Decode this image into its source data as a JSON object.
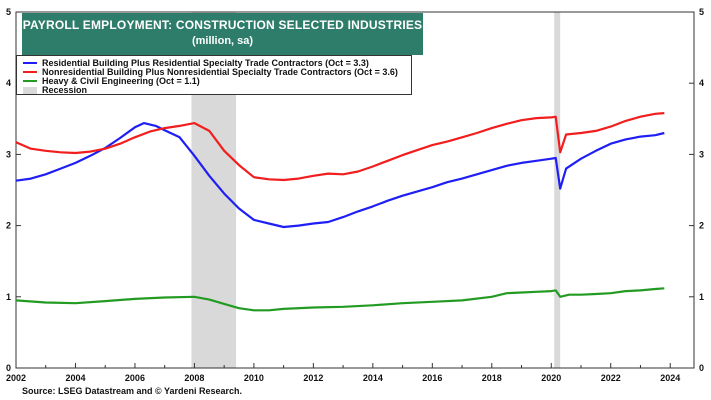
{
  "title": {
    "line1": "PAYROLL EMPLOYMENT:  CONSTRUCTION SELECTED INDUSTRIES",
    "line2": "(million, sa)"
  },
  "source": "Source: LSEG Datastream and © Yardeni Research.",
  "colors": {
    "title_bg": "#2e7d6b",
    "residential": "#1f1ff5",
    "nonresidential": "#f21d1d",
    "heavy_civil": "#239b23",
    "recession": "#d9d9d9"
  },
  "chart_data": {
    "type": "line",
    "x_ticks": [
      "2002",
      "2004",
      "2006",
      "2008",
      "2010",
      "2012",
      "2014",
      "2016",
      "2018",
      "2020",
      "2022",
      "2024"
    ],
    "y_ticks": [
      "0",
      "1",
      "2",
      "3",
      "4",
      "5"
    ],
    "xlim": [
      2002.0,
      2024.8
    ],
    "ylim": [
      0,
      5
    ],
    "grid": false,
    "legend_position": "top-left",
    "recessions": [
      {
        "start": 2007.9,
        "end": 2009.4,
        "label": "Recession"
      },
      {
        "start": 2020.1,
        "end": 2020.3,
        "label": "Recession"
      }
    ],
    "series": [
      {
        "name": "Residential Building Plus Residential Specialty Trade Contractors (Oct = 3.3)",
        "color": "#1f1ff5",
        "points": [
          [
            2002.0,
            2.63
          ],
          [
            2002.5,
            2.66
          ],
          [
            2003.0,
            2.72
          ],
          [
            2003.5,
            2.8
          ],
          [
            2004.0,
            2.88
          ],
          [
            2004.5,
            2.98
          ],
          [
            2005.0,
            3.09
          ],
          [
            2005.5,
            3.23
          ],
          [
            2006.0,
            3.38
          ],
          [
            2006.3,
            3.44
          ],
          [
            2006.7,
            3.4
          ],
          [
            2007.0,
            3.34
          ],
          [
            2007.5,
            3.24
          ],
          [
            2008.0,
            2.98
          ],
          [
            2008.5,
            2.7
          ],
          [
            2009.0,
            2.45
          ],
          [
            2009.5,
            2.24
          ],
          [
            2010.0,
            2.08
          ],
          [
            2010.5,
            2.03
          ],
          [
            2011.0,
            1.98
          ],
          [
            2011.5,
            2.0
          ],
          [
            2012.0,
            2.03
          ],
          [
            2012.5,
            2.05
          ],
          [
            2013.0,
            2.12
          ],
          [
            2013.5,
            2.2
          ],
          [
            2014.0,
            2.27
          ],
          [
            2014.5,
            2.35
          ],
          [
            2015.0,
            2.42
          ],
          [
            2015.5,
            2.48
          ],
          [
            2016.0,
            2.54
          ],
          [
            2016.5,
            2.61
          ],
          [
            2017.0,
            2.66
          ],
          [
            2017.5,
            2.72
          ],
          [
            2018.0,
            2.78
          ],
          [
            2018.5,
            2.84
          ],
          [
            2019.0,
            2.88
          ],
          [
            2019.5,
            2.91
          ],
          [
            2020.0,
            2.94
          ],
          [
            2020.15,
            2.95
          ],
          [
            2020.3,
            2.52
          ],
          [
            2020.5,
            2.8
          ],
          [
            2021.0,
            2.94
          ],
          [
            2021.5,
            3.05
          ],
          [
            2022.0,
            3.15
          ],
          [
            2022.5,
            3.21
          ],
          [
            2023.0,
            3.25
          ],
          [
            2023.5,
            3.27
          ],
          [
            2023.8,
            3.3
          ]
        ]
      },
      {
        "name": "Nonresidential Building Plus Nonresidential Specialty Trade Contractors (Oct = 3.6)",
        "color": "#f21d1d",
        "points": [
          [
            2002.0,
            3.17
          ],
          [
            2002.5,
            3.08
          ],
          [
            2003.0,
            3.05
          ],
          [
            2003.5,
            3.03
          ],
          [
            2004.0,
            3.02
          ],
          [
            2004.5,
            3.04
          ],
          [
            2005.0,
            3.08
          ],
          [
            2005.5,
            3.15
          ],
          [
            2006.0,
            3.24
          ],
          [
            2006.5,
            3.32
          ],
          [
            2007.0,
            3.37
          ],
          [
            2007.5,
            3.4
          ],
          [
            2008.0,
            3.44
          ],
          [
            2008.5,
            3.33
          ],
          [
            2009.0,
            3.05
          ],
          [
            2009.5,
            2.85
          ],
          [
            2010.0,
            2.68
          ],
          [
            2010.5,
            2.65
          ],
          [
            2011.0,
            2.64
          ],
          [
            2011.5,
            2.66
          ],
          [
            2012.0,
            2.7
          ],
          [
            2012.5,
            2.73
          ],
          [
            2013.0,
            2.72
          ],
          [
            2013.5,
            2.76
          ],
          [
            2014.0,
            2.83
          ],
          [
            2014.5,
            2.91
          ],
          [
            2015.0,
            2.99
          ],
          [
            2015.5,
            3.06
          ],
          [
            2016.0,
            3.13
          ],
          [
            2016.5,
            3.18
          ],
          [
            2017.0,
            3.24
          ],
          [
            2017.5,
            3.3
          ],
          [
            2018.0,
            3.37
          ],
          [
            2018.5,
            3.43
          ],
          [
            2019.0,
            3.48
          ],
          [
            2019.5,
            3.51
          ],
          [
            2020.0,
            3.52
          ],
          [
            2020.15,
            3.53
          ],
          [
            2020.3,
            3.03
          ],
          [
            2020.5,
            3.28
          ],
          [
            2021.0,
            3.3
          ],
          [
            2021.5,
            3.33
          ],
          [
            2022.0,
            3.39
          ],
          [
            2022.5,
            3.47
          ],
          [
            2023.0,
            3.53
          ],
          [
            2023.5,
            3.57
          ],
          [
            2023.8,
            3.58
          ]
        ]
      },
      {
        "name": "Heavy & Civil Engineering (Oct = 1.1)",
        "color": "#239b23",
        "points": [
          [
            2002.0,
            0.95
          ],
          [
            2003.0,
            0.92
          ],
          [
            2004.0,
            0.91
          ],
          [
            2005.0,
            0.94
          ],
          [
            2006.0,
            0.97
          ],
          [
            2007.0,
            0.99
          ],
          [
            2008.0,
            1.0
          ],
          [
            2008.5,
            0.96
          ],
          [
            2009.0,
            0.9
          ],
          [
            2009.5,
            0.84
          ],
          [
            2010.0,
            0.81
          ],
          [
            2010.5,
            0.81
          ],
          [
            2011.0,
            0.83
          ],
          [
            2012.0,
            0.85
          ],
          [
            2013.0,
            0.86
          ],
          [
            2014.0,
            0.88
          ],
          [
            2015.0,
            0.91
          ],
          [
            2016.0,
            0.93
          ],
          [
            2017.0,
            0.95
          ],
          [
            2018.0,
            1.0
          ],
          [
            2018.5,
            1.05
          ],
          [
            2019.0,
            1.06
          ],
          [
            2019.5,
            1.07
          ],
          [
            2020.0,
            1.08
          ],
          [
            2020.15,
            1.09
          ],
          [
            2020.3,
            1.0
          ],
          [
            2020.6,
            1.03
          ],
          [
            2021.0,
            1.03
          ],
          [
            2021.5,
            1.04
          ],
          [
            2022.0,
            1.05
          ],
          [
            2022.5,
            1.08
          ],
          [
            2023.0,
            1.09
          ],
          [
            2023.5,
            1.11
          ],
          [
            2023.8,
            1.12
          ]
        ]
      }
    ]
  }
}
